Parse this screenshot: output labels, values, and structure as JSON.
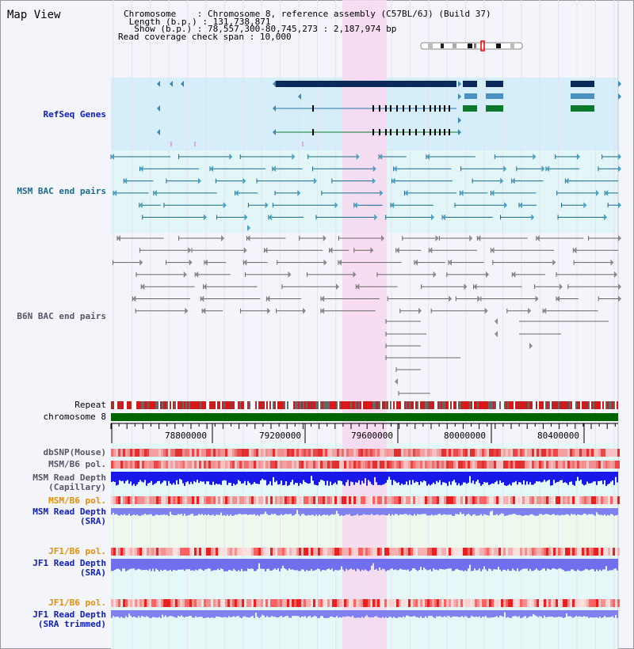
{
  "view": {
    "title": "Map View",
    "info": {
      "chromosome_label": "Chromosome",
      "chromosome_value": "Chromosome 8, reference assembly (C57BL/6J) (Build 37)",
      "length_label": "Length (b.p.)",
      "length_value": "131,738,871",
      "show_label": "Show (b.p.)",
      "show_value": "78,557,300-80,745,273 : 2,187,974 bp",
      "coverage_label": "Read coverage check span",
      "coverage_value": "10,000"
    }
  },
  "tracks": {
    "refseq": "RefSeq Genes",
    "msm_bac": "MSM BAC end pairs",
    "b6n_bac": "B6N BAC end pairs",
    "repeat": "Repeat",
    "chromosome": "chromosome 8",
    "dbsnp": "dbSNP(Mouse)",
    "msm_b6_pol": "MSM/B6 pol.",
    "msm_read_depth_cap_1": "MSM Read Depth",
    "msm_read_depth_cap_2": "(Capillary)",
    "msm_b6_pol_sra": "MSM/B6 pol.",
    "msm_read_depth_sra_1": "MSM Read Depth",
    "msm_read_depth_sra_2": "(SRA)",
    "jf1_b6_pol": "JF1/B6 pol.",
    "jf1_read_depth_1": "JF1 Read Depth",
    "jf1_read_depth_2": "(SRA)",
    "jf1_b6_pol_trim": "JF1/B6 pol.",
    "jf1_read_depth_trim_1": "JF1 Read Depth",
    "jf1_read_depth_trim_2": "(SRA trimmed)"
  },
  "axis": {
    "ticks": [
      "78800000",
      "79200000",
      "79600000",
      "80000000",
      "80400000"
    ]
  },
  "colors": {
    "page_bg": "#f4f5fb",
    "highlight": "#f8d8f0",
    "refseq_bg": "#d6eef9",
    "msm_bac_bg": "#e2f6f8",
    "refseq_label": "#1020b0",
    "msm_bac_label": "#1a6a8a",
    "b6n_label": "#555566",
    "pol_label_orange": "#e09000",
    "depth_blue": "#2020ff",
    "chromosome_green": "#006400"
  }
}
